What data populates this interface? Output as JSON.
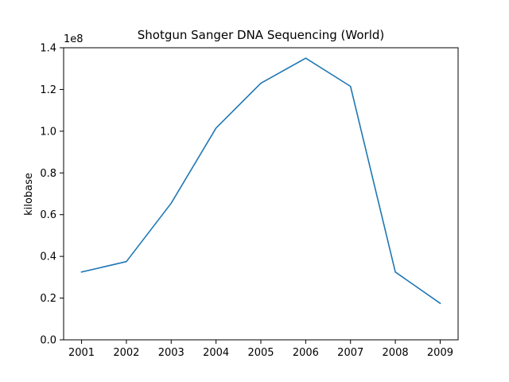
{
  "chart_data": {
    "type": "line",
    "title": "Shotgun Sanger DNA Sequencing (World)",
    "xlabel": "",
    "ylabel": "kilobase",
    "y_offset_label": "1e8",
    "x": [
      2001,
      2002,
      2003,
      2004,
      2005,
      2006,
      2007,
      2008,
      2009
    ],
    "x_tick_labels": [
      "2001",
      "2002",
      "2003",
      "2004",
      "2005",
      "2006",
      "2007",
      "2008",
      "2009"
    ],
    "series": [
      {
        "values": [
          32500000,
          37500000,
          65500000,
          101500000,
          123000000,
          135000000,
          121500000,
          32500000,
          17500000
        ],
        "color": "#1f77b4"
      }
    ],
    "y_ticks": [
      0,
      20000000,
      40000000,
      60000000,
      80000000,
      100000000,
      120000000,
      140000000
    ],
    "y_tick_labels": [
      "0.0",
      "0.2",
      "0.4",
      "0.6",
      "0.8",
      "1.0",
      "1.2",
      "1.4"
    ],
    "xlim": [
      2000.6,
      2009.4
    ],
    "ylim": [
      0,
      140000000
    ],
    "grid": false,
    "legend": "none"
  }
}
